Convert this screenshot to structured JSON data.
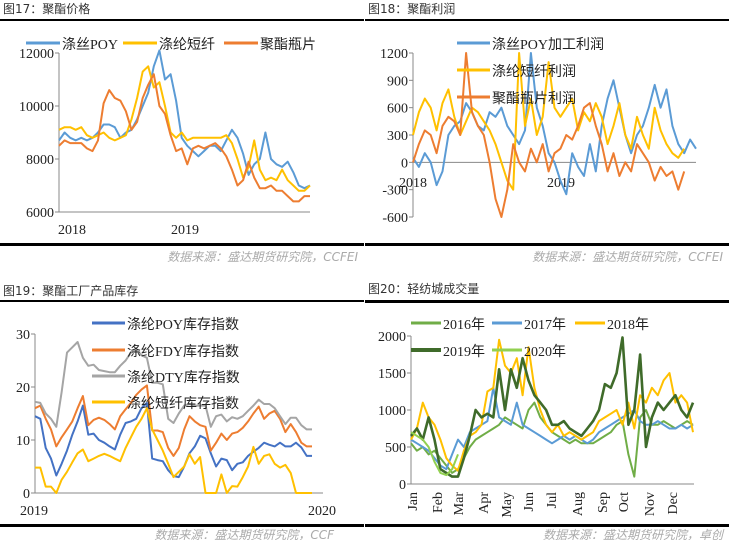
{
  "chart_data": [
    {
      "type": "line",
      "title": "图17：聚酯价格",
      "source": "数据来源：盛达期货研究院，CCFEI",
      "ylim": [
        6000,
        12000
      ],
      "yticks": [
        "6000",
        "8000",
        "10000",
        "12000"
      ],
      "xticks": [
        "2018",
        "2019"
      ],
      "series": [
        {
          "name": "涤丝POY",
          "color": "#5b9bd5",
          "values": [
            8700,
            9000,
            8800,
            8700,
            8800,
            8700,
            8800,
            9000,
            9300,
            9300,
            9200,
            8800,
            9000,
            9100,
            9500,
            10000,
            10500,
            11500,
            12100,
            11000,
            11200,
            10200,
            8800,
            8500,
            8300,
            8100,
            8300,
            8500,
            8500,
            8300,
            8700,
            9100,
            8800,
            8200,
            7400,
            7800,
            8000,
            9000,
            8000,
            7800,
            7700,
            7900,
            7500,
            7000,
            6900,
            7000
          ]
        },
        {
          "name": "涤纶短纤",
          "color": "#ffc000",
          "values": [
            9100,
            9200,
            9200,
            9100,
            9200,
            8900,
            8800,
            8900,
            9000,
            8800,
            8700,
            8800,
            8900,
            9500,
            10300,
            11300,
            11500,
            10700,
            10900,
            10000,
            9000,
            8800,
            9000,
            8700,
            8800,
            8800,
            8800,
            8800,
            8800,
            8800,
            8900,
            8600,
            8000,
            7300,
            7700,
            8700,
            7600,
            7200,
            7300,
            7200,
            7600,
            7200,
            7000,
            6800,
            6800,
            7000
          ]
        },
        {
          "name": "聚酯瓶片",
          "color": "#ed7d31",
          "values": [
            8500,
            8700,
            8600,
            8600,
            8600,
            8400,
            8300,
            8700,
            10100,
            10600,
            10300,
            10200,
            9800,
            9100,
            9400,
            10300,
            10800,
            11200,
            10000,
            9700,
            8900,
            8300,
            8400,
            7800,
            8400,
            8500,
            8400,
            8500,
            8600,
            8400,
            8100,
            7600,
            7000,
            7200,
            7900,
            7300,
            6900,
            6900,
            7000,
            6800,
            6800,
            6600,
            6400,
            6400,
            6600,
            6600
          ]
        }
      ]
    },
    {
      "type": "line",
      "title": "图18：聚酯利润",
      "source": "数据来源：盛达期货研究院，CCFEI",
      "ylim": [
        -600,
        1200
      ],
      "yticks": [
        "-600",
        "-300",
        "0",
        "300",
        "600",
        "900",
        "1200"
      ],
      "xticks": [
        "2018",
        "2019"
      ],
      "series": [
        {
          "name": "涤丝POY加工利润",
          "color": "#5b9bd5",
          "values": [
            50,
            -50,
            100,
            0,
            -250,
            -100,
            300,
            400,
            450,
            650,
            550,
            400,
            350,
            550,
            500,
            600,
            400,
            300,
            200,
            350,
            1200,
            600,
            400,
            100,
            0,
            -200,
            -350,
            100,
            -50,
            -150,
            200,
            -100,
            400,
            700,
            900,
            600,
            300,
            100,
            300,
            400,
            600,
            850,
            600,
            800,
            400,
            200,
            100,
            250,
            150
          ]
        },
        {
          "name": "涤纶短纤利润",
          "color": "#ffc000",
          "values": [
            300,
            550,
            700,
            600,
            350,
            650,
            800,
            500,
            300,
            450,
            600,
            550,
            450,
            350,
            200,
            0,
            -200,
            -300,
            1200,
            400,
            700,
            300,
            500,
            1100,
            600,
            500,
            600,
            700,
            350,
            550,
            450,
            650,
            500,
            200,
            400,
            650,
            300,
            150,
            500,
            300,
            150,
            600,
            350,
            200,
            100,
            50,
            150
          ]
        },
        {
          "name": "聚酯瓶片利润",
          "color": "#ed7d31",
          "values": [
            0,
            200,
            350,
            300,
            100,
            400,
            500,
            450,
            300,
            1200,
            550,
            400,
            300,
            0,
            -400,
            -600,
            -300,
            200,
            0,
            -100,
            150,
            0,
            200,
            -100,
            100,
            150,
            300,
            250,
            400,
            600,
            650,
            400,
            200,
            -100,
            100,
            -150,
            0,
            -100,
            200,
            100,
            0,
            -200,
            -50,
            -150,
            -100,
            -300,
            -100
          ]
        }
      ]
    },
    {
      "type": "line",
      "title": "图19：聚酯工厂产品库存",
      "source": "数据来源：盛达期货研究院，CCF",
      "ylim": [
        0,
        30
      ],
      "yticks": [
        "0",
        "10",
        "20",
        "30"
      ],
      "xticks": [
        "2019",
        "2020"
      ],
      "series": [
        {
          "name": "涤纶POY库存指数",
          "color": "#4472c4",
          "values": [
            14.5,
            14,
            8.5,
            6.5,
            3.3,
            5.5,
            8,
            11,
            13.5,
            16.5,
            11,
            11.2,
            10,
            9.5,
            8.8,
            8.2,
            11,
            13.2,
            13.5,
            14,
            16,
            17,
            6.5,
            6.2,
            6,
            4.3,
            3.2,
            3,
            5,
            7.5,
            8.8,
            10.8,
            10.3,
            7.5,
            5,
            6.5,
            6.2,
            4.3,
            5.5,
            5.8,
            7,
            7.8,
            8.5,
            9.5,
            9.1,
            8.8,
            9.5,
            8.8,
            8.8,
            9.5,
            8.6,
            7,
            7
          ]
        },
        {
          "name": "涤纶FDY库存指数",
          "color": "#ed7d31",
          "values": [
            16,
            16.5,
            14,
            12,
            8.8,
            10.5,
            12,
            13.5,
            16,
            18.3,
            12.8,
            13.8,
            14.2,
            13.8,
            13,
            12,
            14.5,
            15.8,
            17,
            18.5,
            19.5,
            20.3,
            11.8,
            11.8,
            11.5,
            8.5,
            7,
            8.5,
            12,
            14.5,
            13.5,
            12.8,
            12.5,
            8,
            9.5,
            11.2,
            10,
            11.2,
            11.5,
            12.3,
            13.5,
            15,
            16.3,
            14,
            15,
            15.5,
            14,
            11.5,
            13,
            11.5,
            9.5,
            8.8,
            8.8
          ]
        },
        {
          "name": "涤纶DTY库存指数",
          "color": "#a5a5a5",
          "values": [
            17.2,
            17,
            15,
            14,
            12.5,
            19,
            26.5,
            27.5,
            28.5,
            25.5,
            24,
            24.2,
            23.2,
            23,
            22.8,
            22.8,
            24,
            25,
            26.5,
            27,
            26,
            25.5,
            20.8,
            20.8,
            20.5,
            14,
            13.2,
            15,
            16.5,
            16.8,
            16.5,
            16.5,
            16.5,
            12.5,
            14.5,
            14.8,
            13.5,
            14.3,
            14,
            14.5,
            15.5,
            16.5,
            17.6,
            16.8,
            16.8,
            16,
            14.5,
            13,
            14.2,
            14.2,
            12.8,
            12,
            12
          ]
        },
        {
          "name": "涤纶短纤库存指数",
          "color": "#ffc000",
          "values": [
            4.8,
            4.8,
            1.2,
            1.2,
            0,
            2.5,
            4,
            5.8,
            7.5,
            8.2,
            6,
            6.5,
            7,
            7.4,
            7,
            6.5,
            6,
            8.5,
            10.5,
            12.5,
            14,
            16,
            12,
            10,
            8,
            5.5,
            3,
            4,
            5,
            7.3,
            5.5,
            6.8,
            0,
            0,
            0,
            3.5,
            0,
            1.3,
            1.2,
            3,
            5,
            8.7,
            5.5,
            7,
            7.3,
            5.5,
            4.8,
            5.3,
            3.8,
            0,
            0,
            0,
            0
          ]
        }
      ]
    },
    {
      "type": "line",
      "title": "图20：轻纺城成交量",
      "source": "数据来源：盛达期货研究院，卓创",
      "ylim": [
        0,
        2000
      ],
      "yticks": [
        "0",
        "500",
        "1000",
        "1500",
        "2000"
      ],
      "xticks": [
        "Jan",
        "Feb",
        "Mar",
        "Apr",
        "May",
        "Jun",
        "Jul",
        "Aug",
        "Sep",
        "Oct",
        "Nov",
        "Dec"
      ],
      "series": [
        {
          "name": "2016年",
          "color": "#70ad47",
          "values": [
            550,
            450,
            500,
            400,
            450,
            350,
            250,
            150,
            200,
            350,
            500,
            600,
            650,
            700,
            750,
            800,
            900,
            850,
            800,
            750,
            1000,
            1100,
            900,
            800,
            700,
            650,
            600,
            550,
            600,
            550,
            550,
            550,
            600,
            650,
            700,
            800,
            850,
            400,
            100,
            900,
            1000,
            800,
            800,
            850,
            800,
            750,
            800,
            850,
            800
          ]
        },
        {
          "name": "2017年",
          "color": "#5b9bd5",
          "values": [
            600,
            550,
            500,
            450,
            350,
            250,
            200,
            400,
            600,
            500,
            700,
            750,
            800,
            850,
            1300,
            900,
            850,
            800,
            1100,
            800,
            750,
            700,
            650,
            600,
            550,
            600,
            650,
            600,
            650,
            600,
            550,
            600,
            700,
            750,
            800,
            850,
            900,
            950,
            1000,
            850,
            800,
            800,
            850,
            800,
            750,
            750,
            800,
            750,
            800
          ]
        },
        {
          "name": "2018年",
          "color": "#ffc000",
          "values": [
            600,
            750,
            1100,
            900,
            800,
            600,
            350,
            250,
            180,
            450,
            650,
            700,
            800,
            1250,
            1300,
            1950,
            1600,
            1500,
            1700,
            1200,
            1850,
            1300,
            1000,
            800,
            700,
            800,
            650,
            700,
            650,
            600,
            650,
            700,
            850,
            900,
            950,
            1000,
            800,
            1100,
            750,
            1200,
            1100,
            1300,
            1200,
            1400,
            1500,
            1100,
            1200,
            1100,
            700
          ]
        },
        {
          "name": "2019年",
          "color": "#3f6b2a",
          "values": [
            650,
            750,
            600,
            900,
            600,
            200,
            150,
            100,
            100,
            350,
            650,
            1000,
            900,
            950,
            900,
            1550,
            1000,
            1550,
            1300,
            1700,
            1400,
            1200,
            1100,
            1000,
            800,
            800,
            850,
            750,
            700,
            650,
            750,
            850,
            1000,
            1350,
            1300,
            1500,
            1980,
            800,
            1000,
            1750,
            500,
            900,
            1100,
            1000,
            1100,
            1200,
            1000,
            900,
            1100
          ]
        },
        {
          "name": "2020年",
          "color": "#92d050",
          "values": [
            700,
            650,
            600,
            500,
            300,
            150,
            120,
            200,
            400
          ]
        }
      ]
    }
  ]
}
